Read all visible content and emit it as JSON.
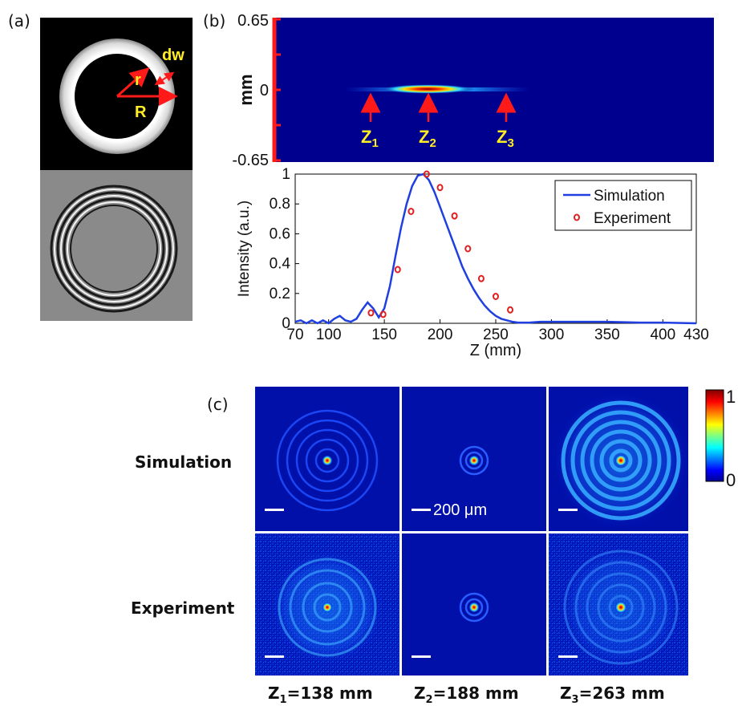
{
  "panel_labels": {
    "a": "(a)",
    "b": "(b)",
    "c": "(c)"
  },
  "panel_a": {
    "mask_labels": {
      "r": "r",
      "R": "R",
      "dw": "dw"
    }
  },
  "panel_b_top": {
    "ylabel": "mm",
    "yticks": [
      "0.65",
      "0",
      "-0.65"
    ],
    "markers": [
      {
        "base": "Z",
        "sub": "1"
      },
      {
        "base": "Z",
        "sub": "2"
      },
      {
        "base": "Z",
        "sub": "3"
      }
    ]
  },
  "chart_data": {
    "type": "line",
    "xlabel": "Z (mm)",
    "ylabel": "Intensity (a.u.)",
    "xlim": [
      70,
      430
    ],
    "ylim": [
      0,
      1
    ],
    "xticks": [
      70,
      100,
      150,
      200,
      250,
      300,
      350,
      400,
      430
    ],
    "yticks": [
      0,
      0.2,
      0.4,
      0.6,
      0.8,
      1
    ],
    "legend_position": "top-right",
    "series": [
      {
        "name": "Simulation",
        "style": "line",
        "color": "#1f3fe0",
        "x": [
          70,
          75,
          80,
          85,
          90,
          95,
          100,
          105,
          110,
          115,
          120,
          125,
          130,
          135,
          140,
          145,
          150,
          155,
          160,
          165,
          170,
          175,
          180,
          185,
          190,
          195,
          200,
          205,
          210,
          215,
          220,
          225,
          230,
          235,
          240,
          245,
          250,
          255,
          260,
          265,
          270,
          280,
          290,
          300,
          320,
          350,
          380,
          400,
          430
        ],
        "y": [
          0.01,
          0.02,
          0.0,
          0.02,
          0.0,
          0.02,
          0.0,
          0.03,
          0.05,
          0.02,
          0.01,
          0.03,
          0.09,
          0.14,
          0.1,
          0.04,
          0.1,
          0.25,
          0.45,
          0.64,
          0.8,
          0.92,
          0.99,
          1.0,
          0.96,
          0.88,
          0.78,
          0.68,
          0.58,
          0.48,
          0.38,
          0.3,
          0.23,
          0.17,
          0.12,
          0.08,
          0.05,
          0.03,
          0.02,
          0.01,
          0.005,
          0.005,
          0.01,
          0.01,
          0.01,
          0.01,
          0.005,
          0.005,
          0.0
        ]
      },
      {
        "name": "Experiment",
        "style": "marker",
        "color": "#e02020",
        "x": [
          138,
          149,
          162,
          174,
          188,
          200,
          213,
          225,
          237,
          250,
          263
        ],
        "y": [
          0.07,
          0.06,
          0.36,
          0.75,
          1.0,
          0.91,
          0.72,
          0.5,
          0.3,
          0.18,
          0.09
        ]
      }
    ]
  },
  "panel_c": {
    "row_labels": {
      "sim": "Simulation",
      "exp": "Experiment"
    },
    "scalebar_label": "200 μm",
    "colorbar": {
      "max": "1",
      "min": "0"
    },
    "captions": [
      {
        "base": "Z",
        "sub": "1",
        "rest": "=138 mm"
      },
      {
        "base": "Z",
        "sub": "2",
        "rest": "=188 mm"
      },
      {
        "base": "Z",
        "sub": "3",
        "rest": "=263 mm"
      }
    ]
  }
}
